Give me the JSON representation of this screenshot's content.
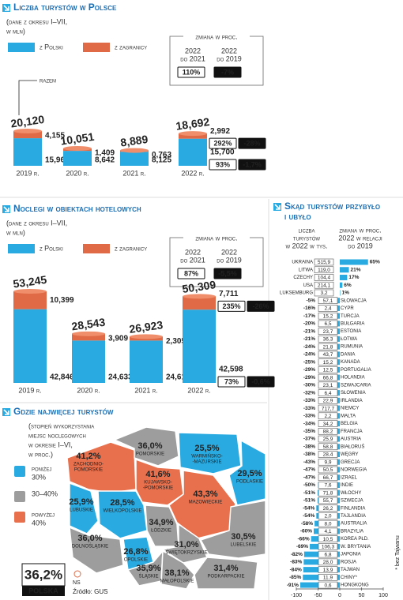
{
  "chart_data": [
    {
      "type": "bar",
      "stacked": true,
      "title": "Liczba turystów w Polsce",
      "subtitle": [
        "(dane z okresu I–VII,",
        "w mln)"
      ],
      "categories": [
        "2019 r.",
        "2020 r.",
        "2021 r.",
        "2022 r."
      ],
      "series": [
        {
          "name": "z Polski",
          "color": "#29abe2",
          "values": [
            15.965,
            8.642,
            8.125,
            15.7
          ],
          "value_labels": [
            "15,965",
            "8,642",
            "8,125",
            "15,700"
          ],
          "change": [
            93,
            -1.7
          ],
          "change_labels": [
            "93%",
            "-1,7%"
          ]
        },
        {
          "name": "z zagranicy",
          "color": "#e06a45",
          "values": [
            4.155,
            1.409,
            0.763,
            2.992
          ],
          "value_labels": [
            "4,155",
            "1,409",
            "0,763",
            "2,992"
          ],
          "change": [
            292,
            -28
          ],
          "change_labels": [
            "292%",
            "-28%"
          ]
        }
      ],
      "total": {
        "name": "razem",
        "values": [
          20.12,
          10.051,
          8.889,
          18.692
        ],
        "value_labels": [
          "20,120",
          "10,051",
          "8,889",
          "18,692"
        ],
        "change": [
          110,
          -7
        ],
        "change_labels": [
          "110%",
          "-7%"
        ]
      },
      "change_title": "zmiana w proc.",
      "change_columns": [
        [
          "2022",
          "do 2021"
        ],
        [
          "2022",
          "do 2019"
        ]
      ]
    },
    {
      "type": "bar",
      "stacked": true,
      "title": "Noclegi w obiektach hotelowych",
      "subtitle": [
        "(dane z okresu I–VII,",
        "w mln)"
      ],
      "categories": [
        "2019 r.",
        "2020 r.",
        "2021 r.",
        "2022 r."
      ],
      "series": [
        {
          "name": "z Polski",
          "color": "#29abe2",
          "values": [
            42.846,
            24.633,
            24.618,
            42.598
          ],
          "value_labels": [
            "42,846",
            "24,633",
            "24,618",
            "42,598"
          ],
          "change": [
            73,
            -0.6
          ],
          "change_labels": [
            "73%",
            "-0,6%"
          ]
        },
        {
          "name": "z zagranicy",
          "color": "#e06a45",
          "values": [
            10.399,
            3.909,
            2.305,
            7.711
          ],
          "value_labels": [
            "10,399",
            "3,909",
            "2,305",
            "7,711"
          ],
          "change": [
            235,
            -26
          ],
          "change_labels": [
            "235%",
            "-26%"
          ]
        }
      ],
      "total": {
        "values": [
          53.245,
          28.543,
          26.923,
          50.309
        ],
        "value_labels": [
          "53,245",
          "28,543",
          "26,923",
          "50,309"
        ],
        "change": [
          87,
          -5.5
        ],
        "change_labels": [
          "87%",
          "-5,5%"
        ]
      },
      "change_title": "zmiana w proc.",
      "change_columns": [
        [
          "2022",
          "do 2021"
        ],
        [
          "2022",
          "do 2019"
        ]
      ]
    },
    {
      "type": "hbar",
      "title": [
        "Skąd turystów przybyło",
        "i ubyło"
      ],
      "columns": [
        [
          "liczba",
          "turystów",
          "w 2022 w tys."
        ],
        [
          "zmiana w proc.",
          "2022 w relacji",
          "do 2019"
        ]
      ],
      "categories": [
        "Ukraina",
        "Litwa",
        "Czechy",
        "USA",
        "Luksemburg",
        "Słowacja",
        "Cypr",
        "Turcja",
        "Bułgaria",
        "Estonia",
        "Łotwa",
        "Rumunia",
        "Dania",
        "Kanada",
        "Portugalia",
        "Holandia",
        "Szwajcaria",
        "Słowenia",
        "Irlandia",
        "Niemcy",
        "Malta",
        "Belgia",
        "Francja",
        "Austria",
        "Białoruś",
        "Węgry",
        "Grecja",
        "Norwegia",
        "Izrael",
        "Indie",
        "Włochy",
        "Szwecja",
        "Finlandia",
        "Tajlandia",
        "Australia",
        "Brazylia",
        "Korea Płd.",
        "W. Brytania",
        "Japonia",
        "Rosja",
        "Tajwan",
        "Chiny*",
        "Hongkong"
      ],
      "series": [
        {
          "color": "#29abe2",
          "values": [
            65,
            21,
            17,
            6,
            1,
            -5,
            -16,
            -17,
            -20,
            -21,
            -21,
            -24,
            -24,
            -25,
            -29,
            -29,
            -30,
            -32,
            -33,
            -33,
            -33,
            -34,
            -35,
            -37,
            -38,
            -38,
            -43,
            -47,
            -47,
            -50,
            -51,
            -51,
            -54,
            -54,
            -58,
            -60,
            -66,
            -69,
            -82,
            -83,
            -84,
            -85,
            -91
          ],
          "value_labels": [
            "65%",
            "21%",
            "17%",
            "6%",
            "1%",
            "-5%",
            "-16%",
            "-17%",
            "-20%",
            "-21%",
            "-21%",
            "-24%",
            "-24%",
            "-25%",
            "-29%",
            "-29%",
            "-30%",
            "-32%",
            "-33%",
            "-33%",
            "-33%",
            "-34%",
            "-35%",
            "-37%",
            "-38%",
            "-38%",
            "-43%",
            "-47%",
            "-47%",
            "-50%",
            "-51%",
            "-51%",
            "-54%",
            "-54%",
            "-58%",
            "-60%",
            "-66%",
            "-69%",
            "-82%",
            "-83%",
            "-84%",
            "-85%",
            "-91%"
          ]
        }
      ],
      "tourists": [
        515.9,
        119.0,
        104.4,
        214.1,
        3.2,
        57.1,
        2.4,
        15.2,
        6.5,
        23.7,
        36.3,
        21.8,
        43.7,
        15.2,
        12.5,
        66.8,
        23.1,
        6.4,
        22.9,
        717.7,
        2.2,
        34.2,
        88.2,
        25.9,
        58.8,
        28.4,
        9.9,
        50.5,
        66.7,
        7.6,
        71.8,
        55.7,
        26.2,
        2.0,
        8.0,
        4.1,
        10.5,
        106.3,
        6.8,
        28.0,
        13.9,
        11.9,
        0.6
      ],
      "tourists_labels": [
        "515,9",
        "119,0",
        "104,4",
        "214,1",
        "3,2",
        "57,1",
        "2,4",
        "15,2",
        "6,5",
        "23,7",
        "36,3",
        "21,8",
        "43,7",
        "15,2",
        "12,5",
        "66,8",
        "23,1",
        "6,4",
        "22,9",
        "717,7",
        "2,2",
        "34,2",
        "88,2",
        "25,9",
        "58,8",
        "28,4",
        "9,9",
        "50,5",
        "66,7",
        "7,6",
        "71,8",
        "55,7",
        "26,2",
        "2,0",
        "8,0",
        "4,1",
        "10,5",
        "106,3",
        "6,8",
        "28,0",
        "13,9",
        "11,9",
        "0,6"
      ],
      "xlim": [
        -100,
        100
      ],
      "xticks": [
        -100,
        -50,
        0,
        50,
        100
      ],
      "footnote": "* bez Tajwanu"
    }
  ],
  "map": {
    "title": "Gdzie najwięcej turystów",
    "description": [
      "(stopień wykorzystania",
      "miejsc noclegowych",
      "w okresie I–VI,",
      "w proc.)"
    ],
    "legend": [
      {
        "label": [
          "poniżej",
          "30%"
        ],
        "color": "#29abe2"
      },
      {
        "label": [
          "30–40%"
        ],
        "color": "#9d9d9d"
      },
      {
        "label": [
          "powyżej",
          "40%"
        ],
        "color": "#e8704d"
      }
    ],
    "regions": [
      {
        "name": [
          "Zachodnio-",
          "pomorskie"
        ],
        "value": 41.2,
        "value_label": "41,2%",
        "color": "#e8704d"
      },
      {
        "name": [
          "Pomorskie"
        ],
        "value": 36.0,
        "value_label": "36,0%",
        "color": "#9d9d9d"
      },
      {
        "name": [
          "Warmińsko-",
          "-mazurskie"
        ],
        "value": 25.5,
        "value_label": "25,5%",
        "color": "#29abe2"
      },
      {
        "name": [
          "Podlaskie"
        ],
        "value": 29.5,
        "value_label": "29,5%",
        "color": "#29abe2"
      },
      {
        "name": [
          "Kujawsko-",
          "-pomorskie"
        ],
        "value": 41.6,
        "value_label": "41,6%",
        "color": "#e8704d"
      },
      {
        "name": [
          "Lubuskie"
        ],
        "value": 25.9,
        "value_label": "25,9%",
        "color": "#29abe2"
      },
      {
        "name": [
          "Wielkopolskie"
        ],
        "value": 28.5,
        "value_label": "28,5%",
        "color": "#29abe2"
      },
      {
        "name": [
          "Mazowieckie"
        ],
        "value": 43.3,
        "value_label": "43,3%",
        "color": "#e8704d"
      },
      {
        "name": [
          "Łódzkie"
        ],
        "value": 34.9,
        "value_label": "34,9%",
        "color": "#9d9d9d"
      },
      {
        "name": [
          "Dolnośląskie"
        ],
        "value": 36.0,
        "value_label": "36,0%",
        "color": "#9d9d9d"
      },
      {
        "name": [
          "Opolskie"
        ],
        "value": 26.8,
        "value_label": "26,8%",
        "color": "#29abe2"
      },
      {
        "name": [
          "Świętokrzyskie"
        ],
        "value": 31.0,
        "value_label": "31,0%",
        "color": "#9d9d9d"
      },
      {
        "name": [
          "Lubelskie"
        ],
        "value": 30.5,
        "value_label": "30,5%",
        "color": "#9d9d9d"
      },
      {
        "name": [
          "Śląskie"
        ],
        "value": 35.9,
        "value_label": "35,9%",
        "color": "#9d9d9d"
      },
      {
        "name": [
          "Małopolskie"
        ],
        "value": 38.1,
        "value_label": "38,1%",
        "color": "#9d9d9d"
      },
      {
        "name": [
          "Podkarpackie"
        ],
        "value": 31.4,
        "value_label": "31,4%",
        "color": "#9d9d9d"
      }
    ],
    "country": {
      "name": "Polska",
      "value": 36.2,
      "value_label": "36,2%"
    }
  },
  "logo": "NS",
  "source": "Źródło: GUS"
}
